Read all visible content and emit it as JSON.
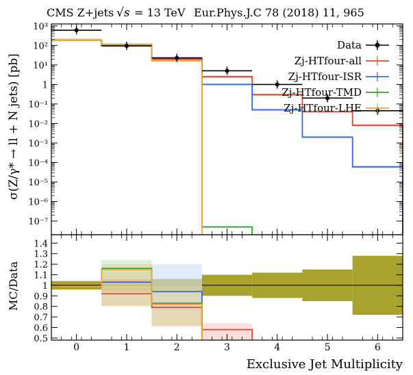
{
  "chart_data": {
    "type": "step",
    "title_parts": {
      "prefix": "CMS Z+jets",
      "sqrt_s": "√s",
      "energy": "= 13 TeV",
      "reference": "Eur.Phys.J.C 78 (2018) 11, 965"
    },
    "xlabel": "Exclusive Jet Multiplicity",
    "ylabel_top": "σ(Z/γ* → ll + N jets) [pb]",
    "ylabel_bottom": "MC/Data",
    "x_ticks": [
      "0",
      "1",
      "2",
      "3",
      "4",
      "5",
      "6"
    ],
    "x_range": [
      -0.5,
      6.5
    ],
    "top_y_log_range": [
      -7.7,
      3.1
    ],
    "top_y_ticks": [
      {
        "exp": 3,
        "label": "10³"
      },
      {
        "exp": 2,
        "label": "10²"
      },
      {
        "exp": 1,
        "label": "10¹"
      },
      {
        "exp": 0,
        "label": "1"
      },
      {
        "exp": -1,
        "label": "10⁻¹"
      },
      {
        "exp": -2,
        "label": "10⁻²"
      },
      {
        "exp": -3,
        "label": "10⁻³"
      },
      {
        "exp": -4,
        "label": "10⁻⁴"
      },
      {
        "exp": -5,
        "label": "10⁻⁵"
      },
      {
        "exp": -6,
        "label": "10⁻⁶"
      },
      {
        "exp": -7,
        "label": "10⁻⁷"
      }
    ],
    "ratio_y_range": [
      0.48,
      1.48
    ],
    "ratio_y_ticks": [
      "1.4",
      "1.3",
      "1.2",
      "1.1",
      "1",
      "0.9",
      "0.8",
      "0.7",
      "0.6",
      "0.5"
    ],
    "data": {
      "name": "Data",
      "color": "#000000",
      "values": [
        600,
        95,
        23,
        5,
        1.0,
        0.2,
        0.045
      ]
    },
    "series": [
      {
        "name": "Zj-HTfour-all",
        "color": "#e2462f",
        "band_color": "#f6c8c0",
        "values": [
          190,
          95,
          20,
          2.5,
          0.3,
          0.04,
          0.008
        ],
        "ratio": [
          null,
          0.92,
          0.79,
          0.58,
          null,
          null,
          null
        ],
        "ratio_band": [
          null,
          [
            0.81,
            1.13
          ],
          [
            0.61,
            0.95
          ],
          [
            0.48,
            0.64
          ],
          null,
          null,
          null
        ]
      },
      {
        "name": "Zj-HTfour-ISR",
        "color": "#3568df",
        "band_color": "#cfdcf8",
        "values": [
          190,
          100,
          22,
          1.0,
          0.05,
          0.002,
          6e-05
        ],
        "ratio": [
          null,
          1.03,
          0.94,
          null,
          null,
          null,
          null
        ],
        "ratio_band": [
          null,
          null,
          [
            0.76,
            1.2
          ],
          null,
          null,
          null,
          null
        ]
      },
      {
        "name": "Zj-HTfour-TMD",
        "color": "#2ea52e",
        "band_color": "#c6e9c6",
        "values": [
          190,
          110,
          17,
          5e-08,
          null,
          null,
          null
        ],
        "ratio": [
          null,
          1.16,
          0.83,
          null,
          null,
          null,
          null
        ],
        "ratio_band": [
          null,
          [
            1.07,
            1.24
          ],
          null,
          null,
          null,
          null,
          null
        ]
      },
      {
        "name": "Zj-HTfour-LHE",
        "color": "#e8a33a",
        "band_color": "#d8d29a",
        "values": [
          190,
          110,
          17,
          null,
          null,
          null,
          null
        ],
        "ratio": [
          0.99,
          1.15,
          0.82,
          null,
          null,
          null,
          null
        ],
        "ratio_band": [
          null,
          [
            0.8,
            1.2
          ],
          [
            0.62,
            1.01
          ],
          null,
          null,
          null,
          null
        ]
      }
    ],
    "data_uncertainty_band": {
      "color": "#a8a32c",
      "ratio_half_width": [
        0.04,
        0.06,
        0.06,
        0.1,
        0.12,
        0.15,
        0.28
      ]
    }
  }
}
